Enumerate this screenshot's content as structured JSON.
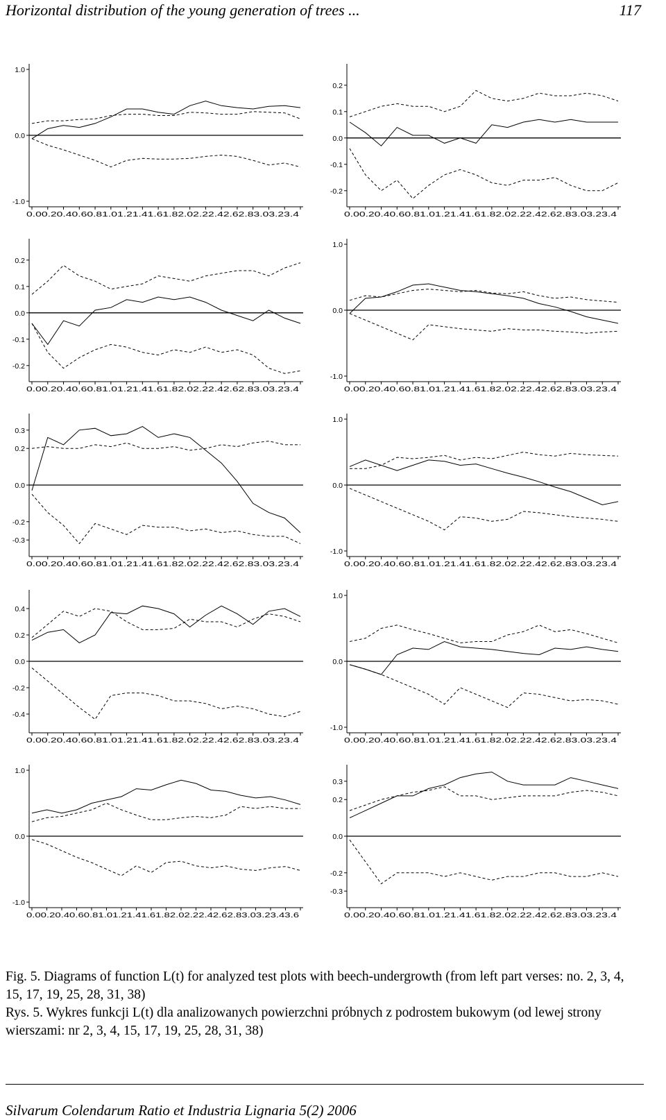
{
  "header": {
    "running_title": "Horizontal distribution of the young generation of trees ...",
    "page_number": "117"
  },
  "caption": {
    "english": "Fig. 5. Diagrams of function L(t) for analyzed test plots with beech-undergrowth (from left part verses: no. 2, 3, 4, 15, 17, 19, 25, 28, 31, 38)",
    "polish": "Rys. 5. Wykres funkcji L(t) dla analizowanych powierzchni próbnych z podrostem bukowym (od lewej strony wierszami: nr 2, 3, 4, 15, 17, 19, 25, 28, 31, 38)"
  },
  "footer": {
    "journal": "Silvarum Colendarum Ratio et Industria Lignaria 5(2) 2006"
  },
  "chart_data": [
    {
      "type": "line",
      "ylim": [
        -1.0,
        1.0
      ],
      "y_ticks": [
        "1.0",
        "0.0",
        "-1.0"
      ],
      "x_tick_labels": "0.00.20.40.60.81.01.21.41.61.82.02.22.42.62.83.03.23.4",
      "x": [
        0.0,
        0.2,
        0.4,
        0.6,
        0.8,
        1.0,
        1.2,
        1.4,
        1.6,
        1.8,
        2.0,
        2.2,
        2.4,
        2.6,
        2.8,
        3.0,
        3.2,
        3.4
      ],
      "series": [
        {
          "style": "solid",
          "values": [
            -0.05,
            0.1,
            0.15,
            0.12,
            0.18,
            0.28,
            0.4,
            0.4,
            0.35,
            0.32,
            0.45,
            0.52,
            0.45,
            0.42,
            0.4,
            0.44,
            0.45,
            0.42
          ]
        },
        {
          "style": "dashed",
          "values": [
            0.18,
            0.22,
            0.22,
            0.24,
            0.25,
            0.3,
            0.32,
            0.32,
            0.3,
            0.3,
            0.35,
            0.34,
            0.32,
            0.32,
            0.36,
            0.35,
            0.34,
            0.25
          ]
        },
        {
          "style": "dashed",
          "values": [
            -0.05,
            -0.15,
            -0.22,
            -0.3,
            -0.38,
            -0.48,
            -0.38,
            -0.35,
            -0.36,
            -0.36,
            -0.35,
            -0.32,
            -0.3,
            -0.32,
            -0.38,
            -0.45,
            -0.42,
            -0.48
          ]
        }
      ]
    },
    {
      "type": "line",
      "ylim": [
        -0.24,
        0.26
      ],
      "y_ticks": [
        "0.2",
        "0.1",
        "0.0",
        "-0.1",
        "-0.2"
      ],
      "x_tick_labels": "0.00.20.40.60.81.01.21.41.61.82.02.22.42.62.83.03.23.4",
      "x": [
        0.0,
        0.2,
        0.4,
        0.6,
        0.8,
        1.0,
        1.2,
        1.4,
        1.6,
        1.8,
        2.0,
        2.2,
        2.4,
        2.6,
        2.8,
        3.0,
        3.2,
        3.4
      ],
      "series": [
        {
          "style": "solid",
          "values": [
            0.06,
            0.02,
            -0.03,
            0.04,
            0.01,
            0.01,
            -0.02,
            0.0,
            -0.02,
            0.05,
            0.04,
            0.06,
            0.07,
            0.06,
            0.07,
            0.06,
            0.06,
            0.06
          ]
        },
        {
          "style": "dashed",
          "values": [
            0.08,
            0.1,
            0.12,
            0.13,
            0.12,
            0.12,
            0.1,
            0.12,
            0.18,
            0.15,
            0.14,
            0.15,
            0.17,
            0.16,
            0.16,
            0.17,
            0.16,
            0.14
          ]
        },
        {
          "style": "dashed",
          "values": [
            -0.04,
            -0.14,
            -0.2,
            -0.16,
            -0.23,
            -0.18,
            -0.14,
            -0.12,
            -0.14,
            -0.17,
            -0.18,
            -0.16,
            -0.16,
            -0.15,
            -0.18,
            -0.2,
            -0.2,
            -0.17
          ]
        }
      ]
    },
    {
      "type": "line",
      "ylim": [
        -0.24,
        0.26
      ],
      "y_ticks": [
        "0.2",
        "0.1",
        "0.0",
        "-0.1",
        "-0.2"
      ],
      "x_tick_labels": "0.00.20.40.60.81.01.21.41.61.82.02.22.42.62.83.03.23.4",
      "x": [
        0.0,
        0.2,
        0.4,
        0.6,
        0.8,
        1.0,
        1.2,
        1.4,
        1.6,
        1.8,
        2.0,
        2.2,
        2.4,
        2.6,
        2.8,
        3.0,
        3.2,
        3.4
      ],
      "series": [
        {
          "style": "solid",
          "values": [
            -0.04,
            -0.12,
            -0.03,
            -0.05,
            0.01,
            0.02,
            0.05,
            0.04,
            0.06,
            0.05,
            0.06,
            0.04,
            0.01,
            -0.01,
            -0.03,
            0.01,
            -0.02,
            -0.04
          ]
        },
        {
          "style": "dashed",
          "values": [
            0.07,
            0.12,
            0.18,
            0.14,
            0.12,
            0.09,
            0.1,
            0.11,
            0.14,
            0.13,
            0.12,
            0.14,
            0.15,
            0.16,
            0.16,
            0.14,
            0.17,
            0.19
          ]
        },
        {
          "style": "dashed",
          "values": [
            -0.04,
            -0.15,
            -0.21,
            -0.17,
            -0.14,
            -0.12,
            -0.13,
            -0.15,
            -0.16,
            -0.14,
            -0.15,
            -0.13,
            -0.15,
            -0.14,
            -0.16,
            -0.21,
            -0.23,
            -0.22
          ]
        }
      ]
    },
    {
      "type": "line",
      "ylim": [
        -1.0,
        1.0
      ],
      "y_ticks": [
        "1.0",
        "0.0",
        "-1.0"
      ],
      "x_tick_labels": "0.00.20.40.60.81.01.21.41.61.82.02.22.42.62.83.03.23.4",
      "x": [
        0.0,
        0.2,
        0.4,
        0.6,
        0.8,
        1.0,
        1.2,
        1.4,
        1.6,
        1.8,
        2.0,
        2.2,
        2.4,
        2.6,
        2.8,
        3.0,
        3.2,
        3.4
      ],
      "series": [
        {
          "style": "solid",
          "values": [
            -0.05,
            0.18,
            0.2,
            0.28,
            0.38,
            0.4,
            0.35,
            0.3,
            0.28,
            0.25,
            0.22,
            0.18,
            0.1,
            0.05,
            -0.02,
            -0.1,
            -0.15,
            -0.2
          ]
        },
        {
          "style": "dashed",
          "values": [
            0.15,
            0.22,
            0.2,
            0.25,
            0.3,
            0.32,
            0.3,
            0.28,
            0.3,
            0.26,
            0.25,
            0.28,
            0.22,
            0.18,
            0.2,
            0.16,
            0.14,
            0.12
          ]
        },
        {
          "style": "dashed",
          "values": [
            -0.05,
            -0.15,
            -0.25,
            -0.35,
            -0.45,
            -0.22,
            -0.25,
            -0.28,
            -0.3,
            -0.32,
            -0.28,
            -0.3,
            -0.3,
            -0.32,
            -0.33,
            -0.35,
            -0.33,
            -0.32
          ]
        }
      ]
    },
    {
      "type": "line",
      "ylim": [
        -0.36,
        0.36
      ],
      "y_ticks": [
        "0.3",
        "0.2",
        "0.0",
        "-0.2",
        "-0.3"
      ],
      "x_tick_labels": "0.00.20.40.60.81.01.21.41.61.82.02.22.42.62.83.03.23.4",
      "x": [
        0.0,
        0.2,
        0.4,
        0.6,
        0.8,
        1.0,
        1.2,
        1.4,
        1.6,
        1.8,
        2.0,
        2.2,
        2.4,
        2.6,
        2.8,
        3.0,
        3.2,
        3.4
      ],
      "series": [
        {
          "style": "solid",
          "values": [
            -0.03,
            0.26,
            0.22,
            0.3,
            0.31,
            0.27,
            0.28,
            0.32,
            0.26,
            0.28,
            0.26,
            0.19,
            0.12,
            0.02,
            -0.1,
            -0.15,
            -0.18,
            -0.26
          ]
        },
        {
          "style": "dashed",
          "values": [
            0.2,
            0.21,
            0.2,
            0.2,
            0.22,
            0.21,
            0.23,
            0.2,
            0.2,
            0.21,
            0.19,
            0.2,
            0.22,
            0.21,
            0.23,
            0.24,
            0.22,
            0.22
          ]
        },
        {
          "style": "dashed",
          "values": [
            -0.05,
            -0.15,
            -0.22,
            -0.32,
            -0.21,
            -0.24,
            -0.27,
            -0.22,
            -0.23,
            -0.23,
            -0.25,
            -0.24,
            -0.26,
            -0.25,
            -0.27,
            -0.28,
            -0.28,
            -0.32
          ]
        }
      ]
    },
    {
      "type": "line",
      "ylim": [
        -1.0,
        1.0
      ],
      "y_ticks": [
        "1.0",
        "0.0",
        "-1.0"
      ],
      "x_tick_labels": "0.00.20.40.60.81.01.21.41.61.82.02.22.42.62.83.03.23.4",
      "x": [
        0.0,
        0.2,
        0.4,
        0.6,
        0.8,
        1.0,
        1.2,
        1.4,
        1.6,
        1.8,
        2.0,
        2.2,
        2.4,
        2.6,
        2.8,
        3.0,
        3.2,
        3.4
      ],
      "series": [
        {
          "style": "solid",
          "values": [
            0.28,
            0.38,
            0.3,
            0.22,
            0.3,
            0.38,
            0.36,
            0.3,
            0.32,
            0.25,
            0.18,
            0.12,
            0.05,
            -0.03,
            -0.1,
            -0.2,
            -0.3,
            -0.25
          ]
        },
        {
          "style": "dashed",
          "values": [
            0.25,
            0.25,
            0.3,
            0.42,
            0.4,
            0.42,
            0.45,
            0.38,
            0.42,
            0.4,
            0.45,
            0.5,
            0.46,
            0.44,
            0.48,
            0.46,
            0.45,
            0.44
          ]
        },
        {
          "style": "dashed",
          "values": [
            -0.05,
            -0.15,
            -0.25,
            -0.35,
            -0.45,
            -0.55,
            -0.68,
            -0.48,
            -0.5,
            -0.55,
            -0.52,
            -0.4,
            -0.42,
            -0.45,
            -0.48,
            -0.5,
            -0.52,
            -0.55
          ]
        }
      ]
    },
    {
      "type": "line",
      "ylim": [
        -0.5,
        0.5
      ],
      "y_ticks": [
        "0.4",
        "0.2",
        "0.0",
        "-0.2",
        "-0.4"
      ],
      "x_tick_labels": "0.00.20.40.60.81.01.21.41.61.82.02.22.42.62.83.03.23.4",
      "x": [
        0.0,
        0.2,
        0.4,
        0.6,
        0.8,
        1.0,
        1.2,
        1.4,
        1.6,
        1.8,
        2.0,
        2.2,
        2.4,
        2.6,
        2.8,
        3.0,
        3.2,
        3.4
      ],
      "series": [
        {
          "style": "solid",
          "values": [
            0.16,
            0.22,
            0.24,
            0.14,
            0.2,
            0.37,
            0.36,
            0.42,
            0.4,
            0.36,
            0.26,
            0.35,
            0.42,
            0.36,
            0.28,
            0.38,
            0.4,
            0.34
          ]
        },
        {
          "style": "dashed",
          "values": [
            0.18,
            0.28,
            0.38,
            0.34,
            0.4,
            0.38,
            0.3,
            0.24,
            0.24,
            0.25,
            0.32,
            0.3,
            0.3,
            0.26,
            0.32,
            0.36,
            0.34,
            0.3
          ]
        },
        {
          "style": "dashed",
          "values": [
            -0.05,
            -0.15,
            -0.25,
            -0.35,
            -0.44,
            -0.26,
            -0.24,
            -0.24,
            -0.26,
            -0.3,
            -0.3,
            -0.32,
            -0.36,
            -0.34,
            -0.36,
            -0.4,
            -0.42,
            -0.38
          ]
        }
      ]
    },
    {
      "type": "line",
      "ylim": [
        -1.0,
        1.0
      ],
      "y_ticks": [
        "1.0",
        "0.0",
        "-1.0"
      ],
      "x_tick_labels": "0.00.20.40.60.81.01.21.41.61.82.02.22.42.62.83.03.23.4",
      "x": [
        0.0,
        0.2,
        0.4,
        0.6,
        0.8,
        1.0,
        1.2,
        1.4,
        1.6,
        1.8,
        2.0,
        2.2,
        2.4,
        2.6,
        2.8,
        3.0,
        3.2,
        3.4
      ],
      "series": [
        {
          "style": "solid",
          "values": [
            -0.05,
            -0.12,
            -0.2,
            0.1,
            0.2,
            0.18,
            0.3,
            0.22,
            0.2,
            0.18,
            0.15,
            0.12,
            0.1,
            0.2,
            0.18,
            0.22,
            0.18,
            0.15
          ]
        },
        {
          "style": "dashed",
          "values": [
            0.3,
            0.35,
            0.5,
            0.55,
            0.48,
            0.42,
            0.35,
            0.28,
            0.3,
            0.3,
            0.4,
            0.45,
            0.55,
            0.45,
            0.48,
            0.42,
            0.35,
            0.28
          ]
        },
        {
          "style": "dashed",
          "values": [
            -0.05,
            -0.12,
            -0.2,
            -0.3,
            -0.4,
            -0.5,
            -0.65,
            -0.4,
            -0.5,
            -0.6,
            -0.7,
            -0.48,
            -0.5,
            -0.55,
            -0.6,
            -0.58,
            -0.6,
            -0.65
          ]
        }
      ]
    },
    {
      "type": "line",
      "ylim": [
        -1.0,
        1.0
      ],
      "y_ticks": [
        "1.0",
        "0.0",
        "-1.0"
      ],
      "x_tick_labels": "0.00.20.40.60.81.01.21.41.61.82.02.22.42.62.83.03.23.43.6",
      "x": [
        0.0,
        0.2,
        0.4,
        0.6,
        0.8,
        1.0,
        1.2,
        1.4,
        1.6,
        1.8,
        2.0,
        2.2,
        2.4,
        2.6,
        2.8,
        3.0,
        3.2,
        3.4,
        3.6
      ],
      "series": [
        {
          "style": "solid",
          "values": [
            0.35,
            0.4,
            0.35,
            0.4,
            0.5,
            0.55,
            0.6,
            0.72,
            0.7,
            0.78,
            0.85,
            0.8,
            0.7,
            0.68,
            0.62,
            0.58,
            0.6,
            0.55,
            0.48
          ]
        },
        {
          "style": "dashed",
          "values": [
            0.22,
            0.28,
            0.3,
            0.35,
            0.4,
            0.5,
            0.4,
            0.32,
            0.25,
            0.25,
            0.28,
            0.3,
            0.28,
            0.32,
            0.45,
            0.42,
            0.45,
            0.42,
            0.42
          ]
        },
        {
          "style": "dashed",
          "values": [
            -0.05,
            -0.12,
            -0.22,
            -0.32,
            -0.4,
            -0.5,
            -0.6,
            -0.45,
            -0.55,
            -0.4,
            -0.38,
            -0.45,
            -0.48,
            -0.45,
            -0.5,
            -0.52,
            -0.48,
            -0.46,
            -0.52
          ]
        }
      ]
    },
    {
      "type": "line",
      "ylim": [
        -0.36,
        0.36
      ],
      "y_ticks": [
        "0.3",
        "0.2",
        "0.0",
        "-0.2",
        "-0.3"
      ],
      "x_tick_labels": "0.00.20.40.60.81.01.21.41.61.82.02.22.42.62.83.03.23.4",
      "x": [
        0.0,
        0.2,
        0.4,
        0.6,
        0.8,
        1.0,
        1.2,
        1.4,
        1.6,
        1.8,
        2.0,
        2.2,
        2.4,
        2.6,
        2.8,
        3.0,
        3.2,
        3.4
      ],
      "series": [
        {
          "style": "solid",
          "values": [
            0.1,
            0.14,
            0.18,
            0.22,
            0.22,
            0.26,
            0.28,
            0.32,
            0.34,
            0.35,
            0.3,
            0.28,
            0.28,
            0.28,
            0.32,
            0.3,
            0.28,
            0.26
          ]
        },
        {
          "style": "dashed",
          "values": [
            0.14,
            0.17,
            0.2,
            0.22,
            0.24,
            0.25,
            0.27,
            0.22,
            0.22,
            0.2,
            0.21,
            0.22,
            0.22,
            0.22,
            0.24,
            0.25,
            0.24,
            0.22
          ]
        },
        {
          "style": "dashed",
          "values": [
            -0.02,
            -0.14,
            -0.26,
            -0.2,
            -0.2,
            -0.2,
            -0.22,
            -0.2,
            -0.22,
            -0.24,
            -0.22,
            -0.22,
            -0.2,
            -0.2,
            -0.22,
            -0.22,
            -0.2,
            -0.22
          ]
        }
      ]
    }
  ]
}
